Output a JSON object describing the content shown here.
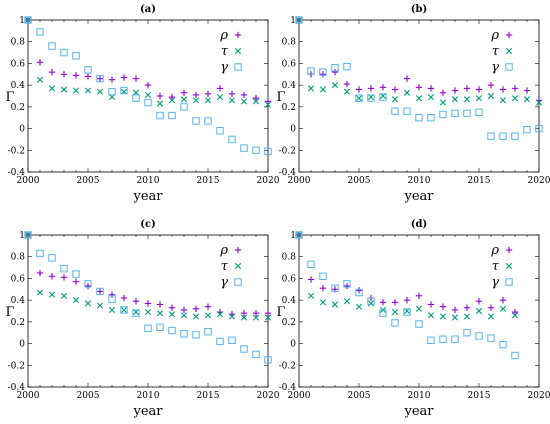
{
  "colors": {
    "rho": "#9400d3",
    "tau": "#009e73",
    "gamma": "#56b4e9"
  },
  "chart_data": [
    {
      "type": "scatter",
      "title": "(a)",
      "xlabel": "year",
      "ylabel": "Γ",
      "xlim": [
        2000,
        2020
      ],
      "ylim": [
        -0.4,
        1
      ],
      "xticks": [
        "2000",
        "2005",
        "2010",
        "2015",
        "2020"
      ],
      "yticks": [
        "-0.4",
        "-0.2",
        "0",
        "0.2",
        "0.4",
        "0.6",
        "0.8",
        "1"
      ],
      "grid": false,
      "legend_position": "top-right",
      "series": [
        {
          "name": "ρ",
          "marker": "plus",
          "x": [
            2000,
            2001,
            2002,
            2003,
            2004,
            2005,
            2006,
            2007,
            2008,
            2009,
            2010,
            2011,
            2012,
            2013,
            2014,
            2015,
            2016,
            2017,
            2018,
            2019,
            2020
          ],
          "y": [
            1,
            0.61,
            0.52,
            0.5,
            0.49,
            0.48,
            0.46,
            0.45,
            0.47,
            0.46,
            0.4,
            0.3,
            0.29,
            0.33,
            0.31,
            0.32,
            0.37,
            0.32,
            0.31,
            0.28,
            0.25
          ]
        },
        {
          "name": "τ",
          "marker": "x",
          "x": [
            2000,
            2001,
            2002,
            2003,
            2004,
            2005,
            2006,
            2007,
            2008,
            2009,
            2010,
            2011,
            2012,
            2013,
            2014,
            2015,
            2016,
            2017,
            2018,
            2019,
            2020
          ],
          "y": [
            1,
            0.45,
            0.37,
            0.36,
            0.35,
            0.35,
            0.34,
            0.29,
            0.34,
            0.33,
            0.31,
            0.23,
            0.26,
            0.27,
            0.26,
            0.26,
            0.29,
            0.26,
            0.25,
            0.25,
            0.22
          ]
        },
        {
          "name": "γ",
          "marker": "square",
          "x": [
            2000,
            2001,
            2002,
            2003,
            2004,
            2005,
            2006,
            2007,
            2008,
            2009,
            2010,
            2011,
            2012,
            2013,
            2014,
            2015,
            2016,
            2017,
            2018,
            2019,
            2020
          ],
          "y": [
            1,
            0.89,
            0.76,
            0.7,
            0.67,
            0.54,
            0.46,
            0.34,
            0.35,
            0.28,
            0.24,
            0.12,
            0.12,
            0.2,
            0.07,
            0.07,
            -0.02,
            -0.1,
            -0.18,
            -0.2,
            -0.21
          ]
        }
      ]
    },
    {
      "type": "scatter",
      "title": "(b)",
      "xlabel": "year",
      "ylabel": "Γ",
      "xlim": [
        2000,
        2020
      ],
      "ylim": [
        -0.4,
        1
      ],
      "xticks": [
        "2000",
        "2005",
        "2010",
        "2015",
        "2020"
      ],
      "yticks": [
        "-0.4",
        "-0.2",
        "0",
        "0.2",
        "0.4",
        "0.6",
        "0.8",
        "1"
      ],
      "grid": false,
      "legend_position": "top-right",
      "series": [
        {
          "name": "ρ",
          "marker": "plus",
          "x": [
            2000,
            2001,
            2002,
            2003,
            2004,
            2005,
            2006,
            2007,
            2008,
            2009,
            2010,
            2011,
            2012,
            2013,
            2014,
            2015,
            2016,
            2017,
            2018,
            2019,
            2020
          ],
          "y": [
            1,
            0.5,
            0.5,
            0.52,
            0.41,
            0.36,
            0.37,
            0.38,
            0.36,
            0.46,
            0.38,
            0.37,
            0.33,
            0.35,
            0.37,
            0.36,
            0.4,
            0.36,
            0.37,
            0.35,
            0.26
          ]
        },
        {
          "name": "τ",
          "marker": "x",
          "x": [
            2000,
            2001,
            2002,
            2003,
            2004,
            2005,
            2006,
            2007,
            2008,
            2009,
            2010,
            2011,
            2012,
            2013,
            2014,
            2015,
            2016,
            2017,
            2018,
            2019,
            2020
          ],
          "y": [
            1,
            0.37,
            0.36,
            0.4,
            0.34,
            0.28,
            0.29,
            0.3,
            0.27,
            0.33,
            0.28,
            0.29,
            0.24,
            0.27,
            0.27,
            0.28,
            0.3,
            0.26,
            0.28,
            0.27,
            0.24
          ]
        },
        {
          "name": "γ",
          "marker": "square",
          "x": [
            2000,
            2001,
            2002,
            2003,
            2004,
            2005,
            2006,
            2007,
            2008,
            2009,
            2010,
            2011,
            2012,
            2013,
            2014,
            2015,
            2016,
            2017,
            2018,
            2019,
            2020
          ],
          "y": [
            1,
            0.53,
            0.52,
            0.56,
            0.57,
            0.28,
            0.28,
            0.29,
            0.16,
            0.16,
            0.1,
            0.1,
            0.13,
            0.14,
            0.14,
            0.15,
            -0.07,
            -0.07,
            -0.07,
            -0.01,
            0.0
          ]
        }
      ]
    },
    {
      "type": "scatter",
      "title": "(c)",
      "xlabel": "year",
      "ylabel": "Γ",
      "xlim": [
        2000,
        2020
      ],
      "ylim": [
        -0.4,
        1
      ],
      "xticks": [
        "2000",
        "2005",
        "2010",
        "2015",
        "2020"
      ],
      "yticks": [
        "-0.4",
        "-0.2",
        "0",
        "0.2",
        "0.4",
        "0.6",
        "0.8",
        "1"
      ],
      "grid": false,
      "legend_position": "top-right",
      "series": [
        {
          "name": "ρ",
          "marker": "plus",
          "x": [
            2000,
            2001,
            2002,
            2003,
            2004,
            2005,
            2006,
            2007,
            2008,
            2009,
            2010,
            2011,
            2012,
            2013,
            2014,
            2015,
            2016,
            2017,
            2018,
            2019,
            2020
          ],
          "y": [
            1,
            0.65,
            0.62,
            0.61,
            0.57,
            0.53,
            0.48,
            0.45,
            0.42,
            0.39,
            0.37,
            0.36,
            0.33,
            0.31,
            0.32,
            0.34,
            0.29,
            0.27,
            0.28,
            0.28,
            0.28
          ]
        },
        {
          "name": "τ",
          "marker": "x",
          "x": [
            2000,
            2001,
            2002,
            2003,
            2004,
            2005,
            2006,
            2007,
            2008,
            2009,
            2010,
            2011,
            2012,
            2013,
            2014,
            2015,
            2016,
            2017,
            2018,
            2019,
            2020
          ],
          "y": [
            1,
            0.47,
            0.45,
            0.44,
            0.4,
            0.37,
            0.35,
            0.31,
            0.31,
            0.29,
            0.29,
            0.28,
            0.27,
            0.26,
            0.25,
            0.26,
            0.27,
            0.25,
            0.24,
            0.24,
            0.24
          ]
        },
        {
          "name": "γ",
          "marker": "square",
          "x": [
            2000,
            2001,
            2002,
            2003,
            2004,
            2005,
            2006,
            2007,
            2008,
            2009,
            2010,
            2011,
            2012,
            2013,
            2014,
            2015,
            2016,
            2017,
            2018,
            2019,
            2020
          ],
          "y": [
            1,
            0.83,
            0.79,
            0.69,
            0.64,
            0.55,
            0.48,
            0.41,
            0.31,
            0.28,
            0.14,
            0.15,
            0.12,
            0.09,
            0.08,
            0.11,
            0.02,
            0.03,
            -0.05,
            -0.1,
            -0.15
          ]
        }
      ]
    },
    {
      "type": "scatter",
      "title": "(d)",
      "xlabel": "year",
      "ylabel": "Γ",
      "xlim": [
        2000,
        2020
      ],
      "ylim": [
        -0.4,
        1
      ],
      "xticks": [
        "2000",
        "2005",
        "2010",
        "2015",
        "2020"
      ],
      "yticks": [
        "-0.4",
        "-0.2",
        "0",
        "0.2",
        "0.4",
        "0.6",
        "0.8",
        "1"
      ],
      "grid": false,
      "legend_position": "top-right",
      "series": [
        {
          "name": "ρ",
          "marker": "plus",
          "x": [
            2000,
            2001,
            2002,
            2003,
            2004,
            2005,
            2006,
            2007,
            2008,
            2009,
            2010,
            2011,
            2012,
            2013,
            2014,
            2015,
            2016,
            2017,
            2018
          ],
          "y": [
            1,
            0.59,
            0.51,
            0.5,
            0.53,
            0.49,
            0.42,
            0.38,
            0.38,
            0.4,
            0.44,
            0.36,
            0.34,
            0.31,
            0.33,
            0.39,
            0.33,
            0.4,
            0.29
          ]
        },
        {
          "name": "τ",
          "marker": "x",
          "x": [
            2000,
            2001,
            2002,
            2003,
            2004,
            2005,
            2006,
            2007,
            2008,
            2009,
            2010,
            2011,
            2012,
            2013,
            2014,
            2015,
            2016,
            2017,
            2018
          ],
          "y": [
            1,
            0.44,
            0.38,
            0.36,
            0.39,
            0.34,
            0.37,
            0.31,
            0.29,
            0.3,
            0.32,
            0.26,
            0.25,
            0.24,
            0.25,
            0.3,
            0.25,
            0.32,
            0.26
          ]
        },
        {
          "name": "γ",
          "marker": "square",
          "x": [
            2000,
            2001,
            2002,
            2003,
            2004,
            2005,
            2006,
            2007,
            2008,
            2009,
            2010,
            2011,
            2012,
            2013,
            2014,
            2015,
            2016,
            2017,
            2018
          ],
          "y": [
            1,
            0.73,
            0.62,
            0.51,
            0.55,
            0.47,
            0.39,
            0.28,
            0.19,
            0.29,
            0.18,
            0.03,
            0.04,
            0.04,
            0.1,
            0.07,
            0.05,
            -0.01,
            -0.11
          ]
        }
      ]
    }
  ]
}
